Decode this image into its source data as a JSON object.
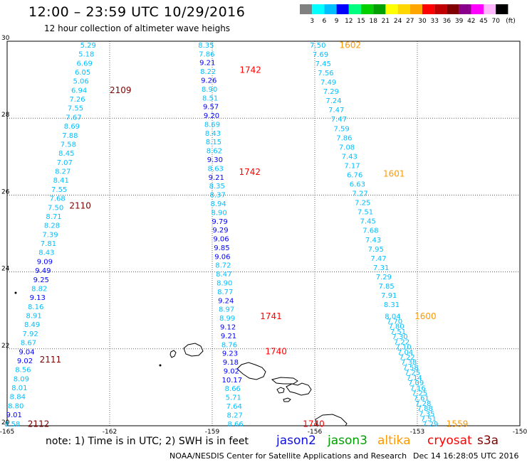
{
  "title": "12:00 – 23:59 UTC 10/29/2016",
  "subtitle": "12 hour collection of altimeter wave heighs",
  "colorbar": {
    "labels": [
      "3",
      "6",
      "9",
      "12",
      "15",
      "18",
      "21",
      "24",
      "27",
      "30",
      "33",
      "36",
      "39",
      "42",
      "45",
      "70"
    ],
    "unit": "(ft)",
    "colors": [
      "#808080",
      "#00ffff",
      "#00bfff",
      "#0000ff",
      "#00ff7f",
      "#00d000",
      "#00a000",
      "#ffff00",
      "#ffd700",
      "#ffa500",
      "#ff0000",
      "#c00000",
      "#800000",
      "#8b008b",
      "#ff00ff",
      "#ffb6ff",
      "#000000"
    ]
  },
  "axes": {
    "x_ticks": [
      "-165",
      "-162",
      "-159",
      "-156",
      "-153",
      "-150"
    ],
    "y_ticks": [
      "30",
      "28",
      "26",
      "24",
      "22",
      "20"
    ]
  },
  "legend": {
    "note": "note: 1) Time is in UTC; 2) SWH is in feet",
    "satellites": [
      {
        "name": "jason2",
        "color": "#1010e0"
      },
      {
        "name": "jason3",
        "color": "#00a000"
      },
      {
        "name": "altika",
        "color": "#ff9900"
      },
      {
        "name": "cryosat",
        "color": "#ff0000"
      },
      {
        "name": "s3a",
        "color": "#800000"
      }
    ]
  },
  "footer": {
    "credit": "NOAA/NESDIS Center for Satellite Applications and Research",
    "timestamp": "Dec 14 16:28:05 UTC 2016"
  },
  "tracks": [
    {
      "id": "track-s3a",
      "labels": [
        {
          "text": "2109",
          "lon": -162.0,
          "lat": 28.72,
          "color": "#800000"
        },
        {
          "text": "2110",
          "lon": -163.18,
          "lat": 25.72,
          "color": "#800000"
        },
        {
          "text": "2111",
          "lon": -164.05,
          "lat": 21.72,
          "color": "#800000"
        },
        {
          "text": "2112",
          "lon": -164.4,
          "lat": 20.05,
          "color": "#800000"
        }
      ],
      "start": {
        "lon": -162.63,
        "lat": 29.9
      },
      "end": {
        "lon": -164.85,
        "lat": 20.05
      },
      "values": [
        "5.29",
        "5.18",
        "6.69",
        "6.05",
        "5.06",
        "6.94",
        "7.26",
        "7.55",
        "7.67",
        "8.69",
        "7.88",
        "7.58",
        "8.45",
        "7.07",
        "8.27",
        "8.41",
        "7.55",
        "7.68",
        "7.50",
        "8.71",
        "8.28",
        "7.39",
        "7.81",
        "8.43",
        "9.09",
        "9.49",
        "9.25",
        "8.82",
        "9.13",
        "8.16",
        "8.91",
        "8.49",
        "7.92",
        "8.67",
        "9.04",
        "9.02",
        "8.56",
        "8.09",
        "8.01",
        "8.84",
        "8.80",
        "9.01",
        "8.58"
      ]
    },
    {
      "id": "track-cryosat",
      "labels": [
        {
          "text": "1742",
          "lon": -158.2,
          "lat": 29.25,
          "color": "#ff0000"
        },
        {
          "text": "1742",
          "lon": -158.22,
          "lat": 26.6,
          "color": "#ff0000"
        },
        {
          "text": "1741",
          "lon": -157.6,
          "lat": 22.85,
          "color": "#ff0000"
        },
        {
          "text": "1740",
          "lon": -157.45,
          "lat": 21.93,
          "color": "#ff0000"
        },
        {
          "text": "1740",
          "lon": -156.35,
          "lat": 20.05,
          "color": "#ff0000"
        }
      ],
      "start": {
        "lon": -159.18,
        "lat": 29.9
      },
      "end": {
        "lon": -158.32,
        "lat": 20.05
      },
      "values": [
        "8.35",
        "7.86",
        "9.21",
        "8.22",
        "9.26",
        "8.90",
        "8.51",
        "9.57",
        "9.20",
        "8.69",
        "8.43",
        "8.15",
        "8.62",
        "9.30",
        "8.63",
        "9.21",
        "8.35",
        "8.37",
        "8.94",
        "8.90",
        "9.79",
        "9.29",
        "9.06",
        "9.85",
        "9.06",
        "8.72",
        "8.47",
        "8.90",
        "8.77",
        "9.24",
        "8.97",
        "8.99",
        "9.12",
        "9.21",
        "8.76",
        "9.23",
        "9.18",
        "9.02",
        "10.17",
        "8.66",
        "5.71",
        "7.64",
        "8.27",
        "8.66"
      ]
    },
    {
      "id": "track-altika-north",
      "labels": [
        {
          "text": "1602",
          "lon": -155.28,
          "lat": 29.9,
          "color": "#ff9900"
        },
        {
          "text": "1601",
          "lon": -154.0,
          "lat": 26.55,
          "color": "#ff9900"
        }
      ],
      "start": {
        "lon": -155.91,
        "lat": 29.9
      },
      "end": {
        "lon": -153.75,
        "lat": 23.15
      },
      "values": [
        "7.50",
        "7.69",
        "7.45",
        "7.56",
        "7.49",
        "7.29",
        "7.24",
        "7.47",
        "7.47",
        "7.59",
        "7.86",
        "7.08",
        "7.43",
        "7.17",
        "6.76",
        "6.63",
        "7.27",
        "7.25",
        "7.51",
        "7.45",
        "7.68",
        "7.43",
        "7.95",
        "7.47",
        "7.31",
        "7.29",
        "7.85",
        "7.91",
        "8.31"
      ]
    },
    {
      "id": "track-altika-south",
      "labels": [
        {
          "text": "1600",
          "lon": -153.08,
          "lat": 22.85,
          "color": "#ff9900"
        },
        {
          "text": "1559",
          "lon": -152.15,
          "lat": 20.05,
          "color": "#ff9900"
        }
      ],
      "start": {
        "lon": -153.72,
        "lat": 22.85
      },
      "end": {
        "lon": -152.62,
        "lat": 20.05
      },
      "values": [
        "8.04",
        "7.70",
        "7.80",
        "7.51",
        "7.30",
        "7.22",
        "7.10",
        "7.04",
        "7.22",
        "7.38",
        "7.58",
        "7.25",
        "7.14",
        "7.09",
        "7.16",
        "7.25",
        "7.61",
        "7.28",
        "7.88",
        "7.35",
        "7.51",
        "7.29"
      ]
    }
  ]
}
